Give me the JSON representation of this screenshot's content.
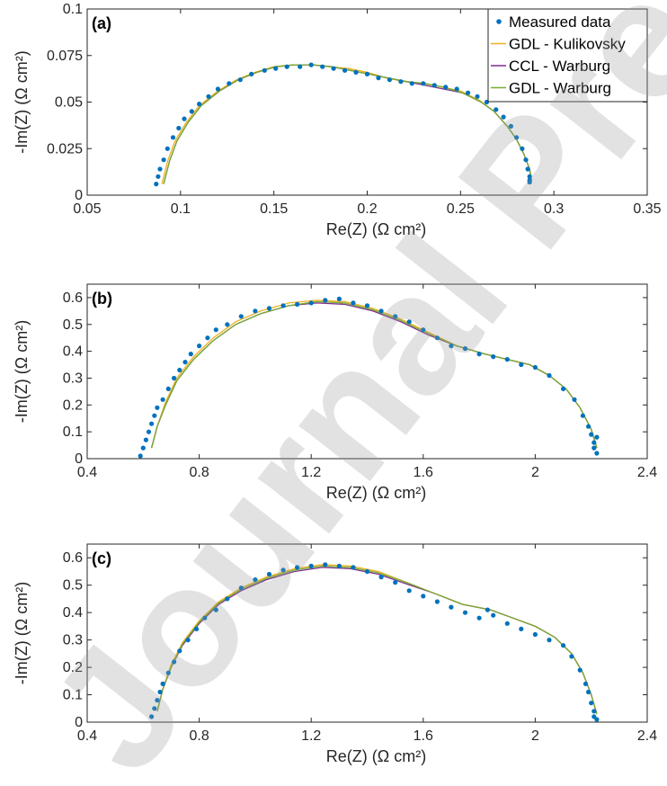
{
  "watermark": "Journal Pre-proof",
  "legend": {
    "entries": [
      {
        "label": "Measured data",
        "color": "#0072BD",
        "kind": "marker"
      },
      {
        "label": "GDL - Kulikovsky",
        "color": "#EDB120",
        "kind": "line"
      },
      {
        "label": "CCL - Warburg",
        "color": "#7E2F8E",
        "kind": "line"
      },
      {
        "label": "GDL - Warburg",
        "color": "#77AC30",
        "kind": "line"
      }
    ]
  },
  "chart_data": [
    {
      "type": "scatter",
      "panel_label": "(a)",
      "xlabel": "Re(Z) (Ω cm²)",
      "ylabel": "-Im(Z) (Ω cm²)",
      "xlim": [
        0.05,
        0.35
      ],
      "ylim": [
        0,
        0.1
      ],
      "xticks": [
        0.05,
        0.1,
        0.15,
        0.2,
        0.25,
        0.3,
        0.35
      ],
      "xtick_labels": [
        "0.05",
        "0.1",
        "0.15",
        "0.2",
        "0.25",
        "0.3",
        "0.35"
      ],
      "yticks": [
        0,
        0.025,
        0.05,
        0.075,
        0.1
      ],
      "ytick_labels": [
        "0",
        "0.025",
        "0.05",
        "0.075",
        "0.1"
      ],
      "legend": "top-right",
      "grid": false,
      "series": [
        {
          "name": "Measured data",
          "style": "markers",
          "color": "#0072BD",
          "x": [
            0.087,
            0.088,
            0.089,
            0.091,
            0.093,
            0.096,
            0.099,
            0.102,
            0.106,
            0.11,
            0.115,
            0.12,
            0.126,
            0.132,
            0.138,
            0.145,
            0.151,
            0.157,
            0.164,
            0.17,
            0.176,
            0.182,
            0.188,
            0.194,
            0.2,
            0.206,
            0.212,
            0.218,
            0.224,
            0.23,
            0.236,
            0.242,
            0.248,
            0.254,
            0.259,
            0.264,
            0.269,
            0.273,
            0.277,
            0.28,
            0.283,
            0.285,
            0.286,
            0.287,
            0.287,
            0.287
          ],
          "y": [
            0.006,
            0.01,
            0.014,
            0.019,
            0.025,
            0.031,
            0.036,
            0.041,
            0.045,
            0.049,
            0.053,
            0.057,
            0.06,
            0.062,
            0.065,
            0.067,
            0.068,
            0.069,
            0.069,
            0.07,
            0.069,
            0.068,
            0.067,
            0.066,
            0.065,
            0.063,
            0.062,
            0.061,
            0.06,
            0.06,
            0.059,
            0.058,
            0.057,
            0.055,
            0.053,
            0.05,
            0.046,
            0.042,
            0.037,
            0.031,
            0.025,
            0.019,
            0.014,
            0.01,
            0.008,
            0.007
          ]
        },
        {
          "name": "GDL - Kulikovsky",
          "style": "line",
          "color": "#EDB120",
          "x": [
            0.09,
            0.093,
            0.097,
            0.103,
            0.11,
            0.12,
            0.13,
            0.14,
            0.15,
            0.16,
            0.17,
            0.18,
            0.19,
            0.2,
            0.21,
            0.22,
            0.23,
            0.24,
            0.25,
            0.26,
            0.268,
            0.275,
            0.28,
            0.284,
            0.287,
            0.288
          ],
          "y": [
            0.006,
            0.018,
            0.029,
            0.039,
            0.048,
            0.056,
            0.062,
            0.066,
            0.069,
            0.07,
            0.07,
            0.069,
            0.068,
            0.066,
            0.063,
            0.061,
            0.06,
            0.058,
            0.056,
            0.051,
            0.045,
            0.037,
            0.03,
            0.022,
            0.014,
            0.008
          ]
        },
        {
          "name": "CCL - Warburg",
          "style": "line",
          "color": "#7E2F8E",
          "x": [
            0.091,
            0.094,
            0.098,
            0.104,
            0.111,
            0.121,
            0.131,
            0.141,
            0.151,
            0.161,
            0.171,
            0.181,
            0.191,
            0.201,
            0.211,
            0.221,
            0.231,
            0.241,
            0.251,
            0.261,
            0.268,
            0.275,
            0.28,
            0.284,
            0.287,
            0.288
          ],
          "y": [
            0.006,
            0.018,
            0.029,
            0.039,
            0.048,
            0.056,
            0.062,
            0.066,
            0.069,
            0.07,
            0.07,
            0.069,
            0.067,
            0.065,
            0.063,
            0.061,
            0.059,
            0.057,
            0.055,
            0.05,
            0.045,
            0.037,
            0.03,
            0.022,
            0.014,
            0.008
          ]
        },
        {
          "name": "GDL - Warburg",
          "style": "line",
          "color": "#77AC30",
          "x": [
            0.091,
            0.094,
            0.098,
            0.104,
            0.111,
            0.121,
            0.131,
            0.141,
            0.151,
            0.161,
            0.171,
            0.181,
            0.191,
            0.201,
            0.211,
            0.221,
            0.231,
            0.241,
            0.251,
            0.261,
            0.268,
            0.275,
            0.28,
            0.284,
            0.287,
            0.288
          ],
          "y": [
            0.006,
            0.018,
            0.029,
            0.039,
            0.048,
            0.056,
            0.062,
            0.066,
            0.069,
            0.07,
            0.07,
            0.069,
            0.067,
            0.065,
            0.063,
            0.061,
            0.06,
            0.058,
            0.055,
            0.05,
            0.045,
            0.037,
            0.03,
            0.022,
            0.014,
            0.008
          ]
        }
      ]
    },
    {
      "type": "scatter",
      "panel_label": "(b)",
      "xlabel": "Re(Z) (Ω cm²)",
      "ylabel": "-Im(Z) (Ω cm²)",
      "xlim": [
        0.4,
        2.4
      ],
      "ylim": [
        0,
        0.65
      ],
      "xticks": [
        0.4,
        0.8,
        1.2,
        1.6,
        2,
        2.4
      ],
      "xtick_labels": [
        "0.4",
        "0.8",
        "1.2",
        "1.6",
        "2",
        "2.4"
      ],
      "yticks": [
        0,
        0.1,
        0.2,
        0.3,
        0.4,
        0.5,
        0.6
      ],
      "ytick_labels": [
        "0",
        "0.1",
        "0.2",
        "0.3",
        "0.4",
        "0.5",
        "0.6"
      ],
      "grid": false,
      "series": [
        {
          "name": "Measured data",
          "style": "markers",
          "color": "#0072BD",
          "x": [
            0.59,
            0.6,
            0.61,
            0.62,
            0.63,
            0.64,
            0.65,
            0.67,
            0.69,
            0.71,
            0.73,
            0.75,
            0.77,
            0.8,
            0.83,
            0.86,
            0.9,
            0.95,
            1.0,
            1.05,
            1.1,
            1.15,
            1.2,
            1.25,
            1.3,
            1.35,
            1.4,
            1.45,
            1.5,
            1.55,
            1.6,
            1.65,
            1.7,
            1.75,
            1.8,
            1.85,
            1.9,
            1.95,
            2.0,
            2.05,
            2.1,
            2.14,
            2.17,
            2.19,
            2.2,
            2.21,
            2.21,
            2.22,
            2.22
          ],
          "y": [
            0.01,
            0.04,
            0.07,
            0.1,
            0.13,
            0.16,
            0.19,
            0.22,
            0.26,
            0.3,
            0.33,
            0.36,
            0.39,
            0.42,
            0.45,
            0.48,
            0.5,
            0.53,
            0.55,
            0.56,
            0.57,
            0.575,
            0.58,
            0.59,
            0.595,
            0.58,
            0.57,
            0.55,
            0.53,
            0.51,
            0.48,
            0.45,
            0.42,
            0.41,
            0.39,
            0.38,
            0.37,
            0.35,
            0.34,
            0.31,
            0.26,
            0.22,
            0.16,
            0.12,
            0.09,
            0.06,
            0.04,
            0.02,
            0.08
          ]
        },
        {
          "name": "GDL - Kulikovsky",
          "style": "line",
          "color": "#EDB120",
          "x": [
            0.63,
            0.65,
            0.68,
            0.72,
            0.78,
            0.85,
            0.93,
            1.02,
            1.12,
            1.22,
            1.32,
            1.42,
            1.52,
            1.62,
            1.72,
            1.82,
            1.9,
            1.98,
            2.05,
            2.11,
            2.16,
            2.2,
            2.22
          ],
          "y": [
            0.04,
            0.12,
            0.21,
            0.3,
            0.38,
            0.45,
            0.51,
            0.55,
            0.58,
            0.59,
            0.585,
            0.56,
            0.52,
            0.47,
            0.42,
            0.39,
            0.37,
            0.35,
            0.31,
            0.26,
            0.19,
            0.11,
            0.04
          ]
        },
        {
          "name": "CCL - Warburg",
          "style": "line",
          "color": "#7E2F8E",
          "x": [
            0.63,
            0.65,
            0.68,
            0.72,
            0.78,
            0.85,
            0.93,
            1.02,
            1.12,
            1.22,
            1.32,
            1.42,
            1.52,
            1.62,
            1.72,
            1.82,
            1.9,
            1.98,
            2.05,
            2.11,
            2.16,
            2.2,
            2.22
          ],
          "y": [
            0.04,
            0.12,
            0.2,
            0.29,
            0.37,
            0.44,
            0.5,
            0.54,
            0.57,
            0.58,
            0.575,
            0.55,
            0.51,
            0.46,
            0.42,
            0.39,
            0.37,
            0.35,
            0.31,
            0.26,
            0.19,
            0.11,
            0.04
          ]
        },
        {
          "name": "GDL - Warburg",
          "style": "line",
          "color": "#77AC30",
          "x": [
            0.63,
            0.65,
            0.68,
            0.72,
            0.78,
            0.85,
            0.93,
            1.02,
            1.12,
            1.22,
            1.32,
            1.42,
            1.52,
            1.62,
            1.72,
            1.82,
            1.9,
            1.98,
            2.05,
            2.11,
            2.16,
            2.2,
            2.22
          ],
          "y": [
            0.04,
            0.12,
            0.2,
            0.29,
            0.37,
            0.44,
            0.5,
            0.54,
            0.57,
            0.585,
            0.58,
            0.555,
            0.515,
            0.465,
            0.42,
            0.39,
            0.37,
            0.35,
            0.31,
            0.26,
            0.19,
            0.11,
            0.04
          ]
        }
      ]
    },
    {
      "type": "scatter",
      "panel_label": "(c)",
      "xlabel": "Re(Z) (Ω cm²)",
      "ylabel": "-Im(Z) (Ω cm²)",
      "xlim": [
        0.4,
        2.4
      ],
      "ylim": [
        0,
        0.65
      ],
      "xticks": [
        0.4,
        0.8,
        1.2,
        1.6,
        2,
        2.4
      ],
      "xtick_labels": [
        "0.4",
        "0.8",
        "1.2",
        "1.6",
        "2",
        "2.4"
      ],
      "yticks": [
        0,
        0.1,
        0.2,
        0.3,
        0.4,
        0.5,
        0.6
      ],
      "ytick_labels": [
        "0",
        "0.1",
        "0.2",
        "0.3",
        "0.4",
        "0.5",
        "0.6"
      ],
      "grid": false,
      "series": [
        {
          "name": "Measured data",
          "style": "markers",
          "color": "#0072BD",
          "x": [
            0.63,
            0.64,
            0.65,
            0.66,
            0.67,
            0.69,
            0.71,
            0.73,
            0.76,
            0.79,
            0.82,
            0.86,
            0.9,
            0.95,
            1.0,
            1.05,
            1.1,
            1.15,
            1.2,
            1.25,
            1.3,
            1.35,
            1.4,
            1.45,
            1.5,
            1.55,
            1.6,
            1.65,
            1.7,
            1.75,
            1.8,
            1.83,
            1.85,
            1.9,
            1.95,
            2.0,
            2.05,
            2.1,
            2.13,
            2.16,
            2.18,
            2.19,
            2.2,
            2.21,
            2.21,
            2.22
          ],
          "y": [
            0.02,
            0.05,
            0.08,
            0.11,
            0.14,
            0.18,
            0.22,
            0.26,
            0.3,
            0.34,
            0.38,
            0.41,
            0.45,
            0.49,
            0.52,
            0.54,
            0.555,
            0.565,
            0.57,
            0.575,
            0.57,
            0.565,
            0.55,
            0.53,
            0.51,
            0.48,
            0.46,
            0.44,
            0.42,
            0.4,
            0.38,
            0.41,
            0.39,
            0.36,
            0.34,
            0.32,
            0.3,
            0.28,
            0.24,
            0.19,
            0.14,
            0.11,
            0.07,
            0.04,
            0.02,
            0.01
          ]
        },
        {
          "name": "GDL - Kulikovsky",
          "style": "line",
          "color": "#EDB120",
          "x": [
            0.65,
            0.67,
            0.7,
            0.74,
            0.8,
            0.87,
            0.95,
            1.04,
            1.14,
            1.24,
            1.34,
            1.44,
            1.54,
            1.64,
            1.74,
            1.84,
            1.92,
            2.0,
            2.07,
            2.13,
            2.17,
            2.2,
            2.22
          ],
          "y": [
            0.04,
            0.12,
            0.21,
            0.29,
            0.37,
            0.44,
            0.49,
            0.53,
            0.56,
            0.575,
            0.57,
            0.55,
            0.51,
            0.47,
            0.43,
            0.41,
            0.38,
            0.35,
            0.31,
            0.25,
            0.18,
            0.1,
            0.03
          ]
        },
        {
          "name": "CCL - Warburg",
          "style": "line",
          "color": "#7E2F8E",
          "x": [
            0.65,
            0.67,
            0.7,
            0.74,
            0.8,
            0.87,
            0.95,
            1.04,
            1.14,
            1.24,
            1.34,
            1.44,
            1.54,
            1.64,
            1.74,
            1.84,
            1.92,
            2.0,
            2.07,
            2.13,
            2.17,
            2.2,
            2.22
          ],
          "y": [
            0.04,
            0.12,
            0.2,
            0.28,
            0.36,
            0.43,
            0.48,
            0.52,
            0.55,
            0.565,
            0.56,
            0.54,
            0.505,
            0.47,
            0.43,
            0.41,
            0.38,
            0.35,
            0.31,
            0.25,
            0.18,
            0.1,
            0.03
          ]
        },
        {
          "name": "GDL - Warburg",
          "style": "line",
          "color": "#77AC30",
          "x": [
            0.65,
            0.67,
            0.7,
            0.74,
            0.8,
            0.87,
            0.95,
            1.04,
            1.14,
            1.24,
            1.34,
            1.44,
            1.54,
            1.64,
            1.74,
            1.84,
            1.92,
            2.0,
            2.07,
            2.13,
            2.17,
            2.2,
            2.22
          ],
          "y": [
            0.04,
            0.12,
            0.2,
            0.285,
            0.365,
            0.435,
            0.485,
            0.525,
            0.555,
            0.57,
            0.565,
            0.545,
            0.51,
            0.47,
            0.43,
            0.41,
            0.38,
            0.35,
            0.31,
            0.25,
            0.18,
            0.1,
            0.03
          ]
        }
      ]
    }
  ]
}
